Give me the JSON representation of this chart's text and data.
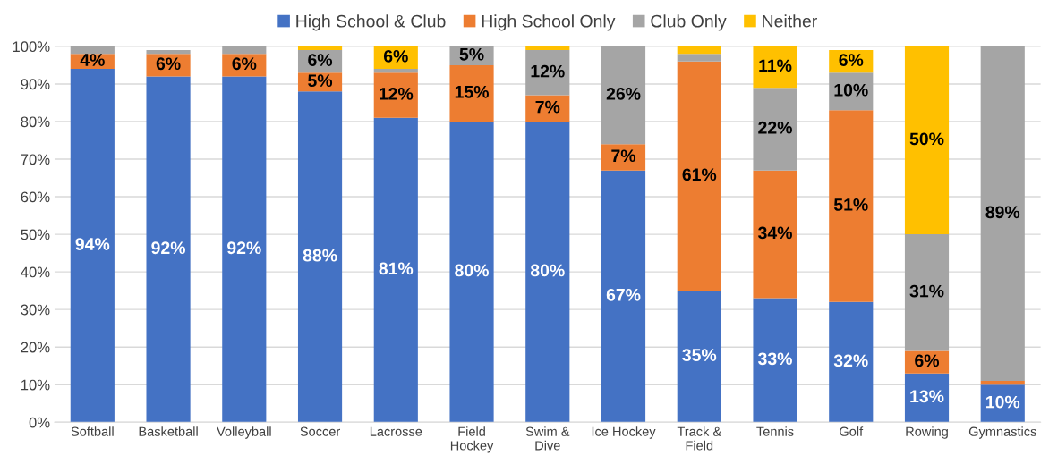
{
  "chart_data": {
    "type": "bar",
    "stacked": true,
    "categories": [
      "Softball",
      "Basketball",
      "Volleyball",
      "Soccer",
      "Lacrosse",
      "Field\nHockey",
      "Swim &\nDive",
      "Ice Hockey",
      "Track &\nField",
      "Tennis",
      "Golf",
      "Rowing",
      "Gymnastics"
    ],
    "series": [
      {
        "name": "High School & Club",
        "color": "#4472c4",
        "values": [
          94,
          92,
          92,
          88,
          81,
          80,
          80,
          67,
          35,
          33,
          32,
          13,
          10
        ],
        "value_labels": [
          "94%",
          "92%",
          "92%",
          "88%",
          "81%",
          "80%",
          "80%",
          "67%",
          "35%",
          "33%",
          "32%",
          "13%",
          "10%"
        ]
      },
      {
        "name": "High School Only",
        "color": "#ed7d31",
        "values": [
          4,
          6,
          6,
          5,
          12,
          15,
          7,
          7,
          61,
          34,
          51,
          6,
          1
        ],
        "value_labels": [
          "4%",
          "6%",
          "6%",
          "5%",
          "12%",
          "15%",
          "7%",
          "7%",
          "61%",
          "34%",
          "51%",
          "6%",
          null
        ]
      },
      {
        "name": "Club Only",
        "color": "#a5a5a5",
        "values": [
          2,
          1,
          2,
          6,
          1,
          5,
          12,
          26,
          2,
          22,
          10,
          31,
          89
        ],
        "value_labels": [
          null,
          null,
          null,
          "6%",
          null,
          "5%",
          "12%",
          "26%",
          null,
          "22%",
          "10%",
          "31%",
          "89%"
        ]
      },
      {
        "name": "Neither",
        "color": "#ffc000",
        "values": [
          0,
          0,
          0,
          1,
          6,
          0,
          1,
          0,
          2,
          11,
          6,
          50,
          0
        ],
        "value_labels": [
          null,
          null,
          null,
          null,
          "6%",
          null,
          null,
          null,
          null,
          "11%",
          "6%",
          "50%",
          null
        ]
      }
    ],
    "ylim": [
      0,
      100
    ],
    "yticks": [
      {
        "value": 0,
        "label": "0%"
      },
      {
        "value": 10,
        "label": "10%"
      },
      {
        "value": 20,
        "label": "20%"
      },
      {
        "value": 30,
        "label": "30%"
      },
      {
        "value": 40,
        "label": "40%"
      },
      {
        "value": 50,
        "label": "50%"
      },
      {
        "value": 60,
        "label": "60%"
      },
      {
        "value": 70,
        "label": "70%"
      },
      {
        "value": 80,
        "label": "80%"
      },
      {
        "value": 90,
        "label": "90%"
      },
      {
        "value": 100,
        "label": "100%"
      }
    ],
    "grid": "y",
    "legend": "top"
  }
}
